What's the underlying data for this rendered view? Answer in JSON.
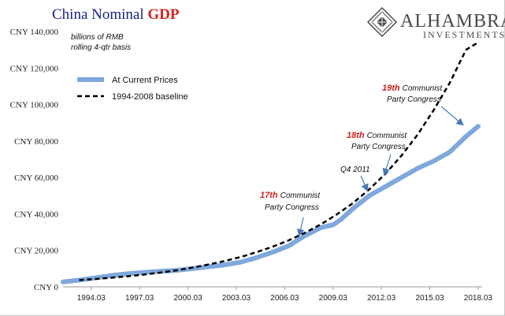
{
  "title": {
    "part1": "China Nominal ",
    "part2": "GDP"
  },
  "colors": {
    "title": "#1a237e",
    "title_accent": "#d32222",
    "current": "#7fa8dc",
    "baseline": "#000000",
    "arrow": "#4a7ab8"
  },
  "logo": {
    "name": "ALHAMBRA",
    "sub": "INVESTMENTS"
  },
  "notes": {
    "line1": "billions of RMB",
    "line2": "rolling 4-qtr basis"
  },
  "annotations": [
    {
      "number": "17th",
      "text1": "Communist",
      "text2": "Party Congress",
      "x": 2007.2,
      "y": 22000
    },
    {
      "number": "18th",
      "text1": "Communist",
      "text2": "Party Congress",
      "x": 2012.2,
      "y": 52000
    },
    {
      "number": "19th",
      "text1": "Communist",
      "text2": "Party Congress",
      "x": 2017.2,
      "y": 83000
    },
    {
      "number": "",
      "text1": "Q4 2011",
      "text2": "",
      "x": 2010.9,
      "y": 49000
    }
  ],
  "chart_data": {
    "type": "line",
    "title": "China Nominal GDP",
    "xlabel": "",
    "ylabel": "",
    "xlim": [
      1992.5,
      2018.5
    ],
    "ylim": [
      0,
      140000
    ],
    "yticks": [
      {
        "value": 0,
        "label": "CNY 0"
      },
      {
        "value": 20000,
        "label": "CNY 20,000"
      },
      {
        "value": 40000,
        "label": "CNY 40,000"
      },
      {
        "value": 60000,
        "label": "CNY 60,000"
      },
      {
        "value": 80000,
        "label": "CNY 80,000"
      },
      {
        "value": 100000,
        "label": "CNY 100,000"
      },
      {
        "value": 120000,
        "label": "CNY 120,000"
      },
      {
        "value": 140000,
        "label": "CNY 140,000"
      }
    ],
    "xticks": [
      {
        "value": 1994.25,
        "label": "1994.03"
      },
      {
        "value": 1997.25,
        "label": "1997.03"
      },
      {
        "value": 2000.25,
        "label": "2000.03"
      },
      {
        "value": 2003.25,
        "label": "2003.03"
      },
      {
        "value": 2006.25,
        "label": "2006.03"
      },
      {
        "value": 2009.25,
        "label": "2009.03"
      },
      {
        "value": 2012.25,
        "label": "2012.03"
      },
      {
        "value": 2015.25,
        "label": "2015.03"
      },
      {
        "value": 2018.25,
        "label": "2018.03"
      }
    ],
    "legend_position": "top-left",
    "series": [
      {
        "name": "At Current Prices",
        "style": "solid",
        "x": [
          1992.5,
          1993.5,
          1994.5,
          1995.5,
          1996.5,
          1997.5,
          1998.5,
          1999.5,
          2000.5,
          2001.5,
          2002.5,
          2003.5,
          2004.5,
          2005.5,
          2006.5,
          2007.5,
          2008.5,
          2009.25,
          2009.75,
          2010.5,
          2011.5,
          2012.5,
          2013.5,
          2014.5,
          2015.5,
          2016.5,
          2017.5,
          2018.25
        ],
        "y": [
          2700,
          3700,
          4900,
          6200,
          7200,
          7900,
          8500,
          9000,
          10000,
          11000,
          12000,
          13500,
          16000,
          19000,
          22500,
          28000,
          32500,
          34000,
          37000,
          43000,
          50000,
          55000,
          60000,
          65000,
          69000,
          74000,
          82500,
          88000
        ]
      },
      {
        "name": "1994-2008 baseline",
        "style": "dashed",
        "x": [
          1993.5,
          1994.5,
          1995.5,
          1996.5,
          1997.5,
          1998.5,
          1999.5,
          2000.5,
          2001.5,
          2002.5,
          2003.5,
          2004.5,
          2005.5,
          2006.5,
          2007.5,
          2008.5,
          2009.5,
          2010.5,
          2011.5,
          2012.5,
          2013.5,
          2014.5,
          2015.5,
          2016.5,
          2017.5,
          2018.25
        ],
        "y": [
          3700,
          4300,
          5000,
          5800,
          6700,
          7800,
          9000,
          10500,
          12200,
          14100,
          16300,
          19000,
          22000,
          25500,
          29600,
          34300,
          39800,
          46000,
          53500,
          62000,
          72000,
          83500,
          97000,
          112000,
          130000,
          134000
        ]
      }
    ]
  }
}
